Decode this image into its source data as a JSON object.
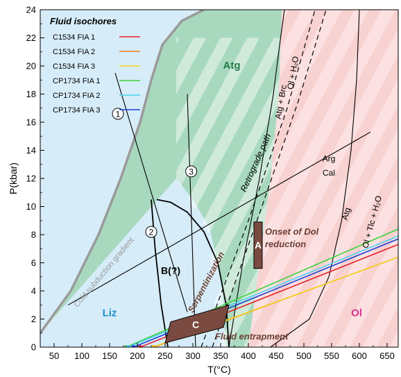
{
  "chart_data": {
    "type": "line",
    "xlabel": "T(°C)",
    "ylabel": "P(kbar)",
    "xlim": [
      25,
      670
    ],
    "ylim": [
      0,
      24
    ],
    "x_ticks": [
      50,
      100,
      150,
      200,
      250,
      300,
      350,
      400,
      450,
      500,
      550,
      600,
      650
    ],
    "y_ticks": [
      0,
      2,
      4,
      6,
      8,
      10,
      12,
      14,
      16,
      18,
      20,
      22,
      24
    ],
    "grid": false,
    "legend": {
      "title": "Fluid isochores",
      "placement": "top-left"
    },
    "series": [
      {
        "name": "C1534 FIA 1",
        "color": "#e8202a",
        "x": [
          205,
          670
        ],
        "y": [
          0,
          7.3
        ]
      },
      {
        "name": "C1534 FIA 2",
        "color": "#f07d1a",
        "x": [
          230,
          670
        ],
        "y": [
          0,
          6.4
        ]
      },
      {
        "name": "C1534 FIA 3",
        "color": "#f5d21e",
        "x": [
          228,
          670
        ],
        "y": [
          0,
          6.4
        ]
      },
      {
        "name": "CP1734 FIA 1",
        "color": "#3cd23c",
        "x": [
          180,
          670
        ],
        "y": [
          0,
          8.4
        ]
      },
      {
        "name": "CP1734 FIA 2",
        "color": "#49d1f0",
        "x": [
          183,
          670
        ],
        "y": [
          0,
          7.9
        ]
      },
      {
        "name": "CP1734 FIA 3",
        "color": "#1f3fd6",
        "x": [
          193,
          670
        ],
        "y": [
          0,
          7.7
        ]
      }
    ],
    "colors": {
      "liz_field": "#d6ecf8",
      "atg_field": "#a8d9be",
      "ol_field": "#fbe1e1",
      "subduction_gradient": "#9a9a9a",
      "box_fill": "#7a4a40",
      "label_atg": "#1f7a46",
      "label_liz": "#1c8ed0",
      "label_ol": "#d6338a",
      "label_brown": "#6b4136"
    },
    "annotations": {
      "atg": "Atg",
      "liz": "Liz",
      "ol": "Ol",
      "cold_subduction": "Cold subduction gradient",
      "retrograde": "Retrograde path",
      "serpentinization": "Serpentinization",
      "onset_line1": "Onset of Dol",
      "onset_line2": "reduction",
      "fluid_entrapment": "Fluid entrapment",
      "box_a": "A",
      "box_b": "B(?)",
      "box_c": "C",
      "circle_1": "1",
      "circle_2": "2",
      "circle_3": "3",
      "arg": "Arg",
      "cal": "Cal",
      "atg_brc": "Atg + Brc",
      "ol_h2o": "Ol + H₂O",
      "atg_small": "Atg",
      "ol_tlc_h2o": "Ol + Tlc + H₂O"
    }
  }
}
